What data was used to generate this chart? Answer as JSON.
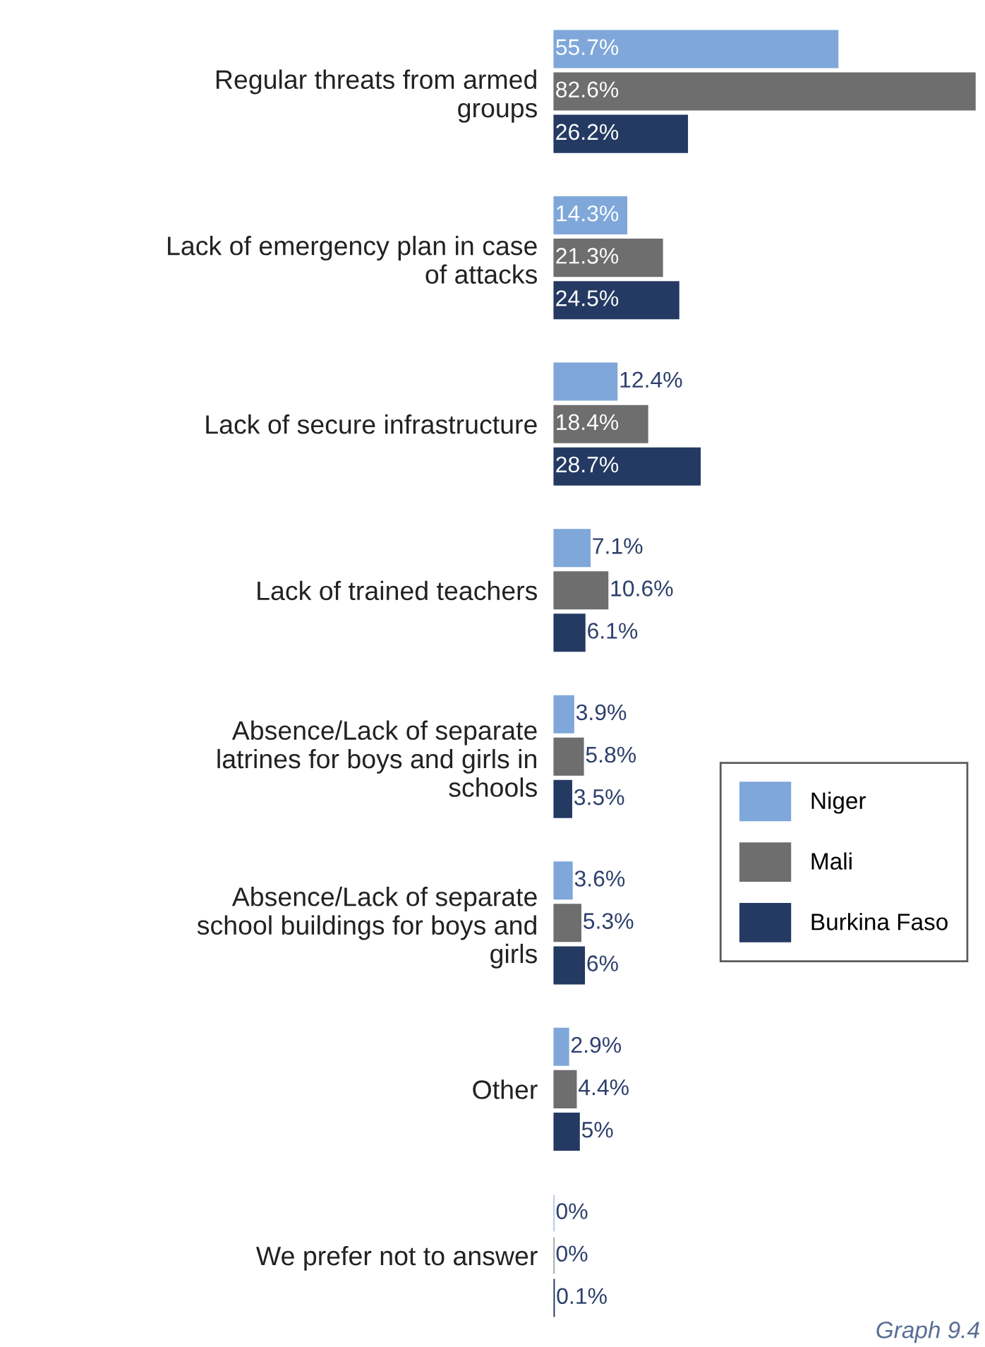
{
  "chart_data": {
    "type": "bar",
    "orientation": "horizontal",
    "categories": [
      "Regular threats from armed groups",
      "Lack of emergency plan in case of attacks",
      "Lack of secure infrastructure",
      "Lack of trained teachers",
      "Absence/Lack of separate latrines for boys and girls in schools",
      "Absence/Lack of separate school buildings for boys and girls",
      "Other",
      "We prefer not to answer"
    ],
    "series": [
      {
        "name": "Niger",
        "color": "#7fa7d9",
        "values": [
          55.7,
          14.3,
          12.4,
          7.1,
          3.9,
          3.6,
          2.9,
          0
        ],
        "value_labels": [
          "55.7%",
          "14.3%",
          "12.4%",
          "7.1%",
          "3.9%",
          "3.6%",
          "2.9%",
          "0%"
        ]
      },
      {
        "name": "Mali",
        "color": "#6e6e6e",
        "values": [
          82.6,
          21.3,
          18.4,
          10.6,
          5.8,
          5.3,
          4.4,
          0
        ],
        "value_labels": [
          "82.6%",
          "21.3%",
          "18.4%",
          "10.6%",
          "5.8%",
          "5.3%",
          "4.4%",
          "0%"
        ]
      },
      {
        "name": "Burkina Faso",
        "color": "#243a63",
        "values": [
          26.2,
          24.5,
          28.7,
          6.1,
          3.5,
          6,
          5,
          0.1
        ],
        "value_labels": [
          "26.2%",
          "24.5%",
          "28.7%",
          "6.1%",
          "3.5%",
          "6%",
          "5%",
          "0.1%"
        ]
      }
    ],
    "legend": "right",
    "annotations": [
      "Graph 9.4"
    ]
  }
}
